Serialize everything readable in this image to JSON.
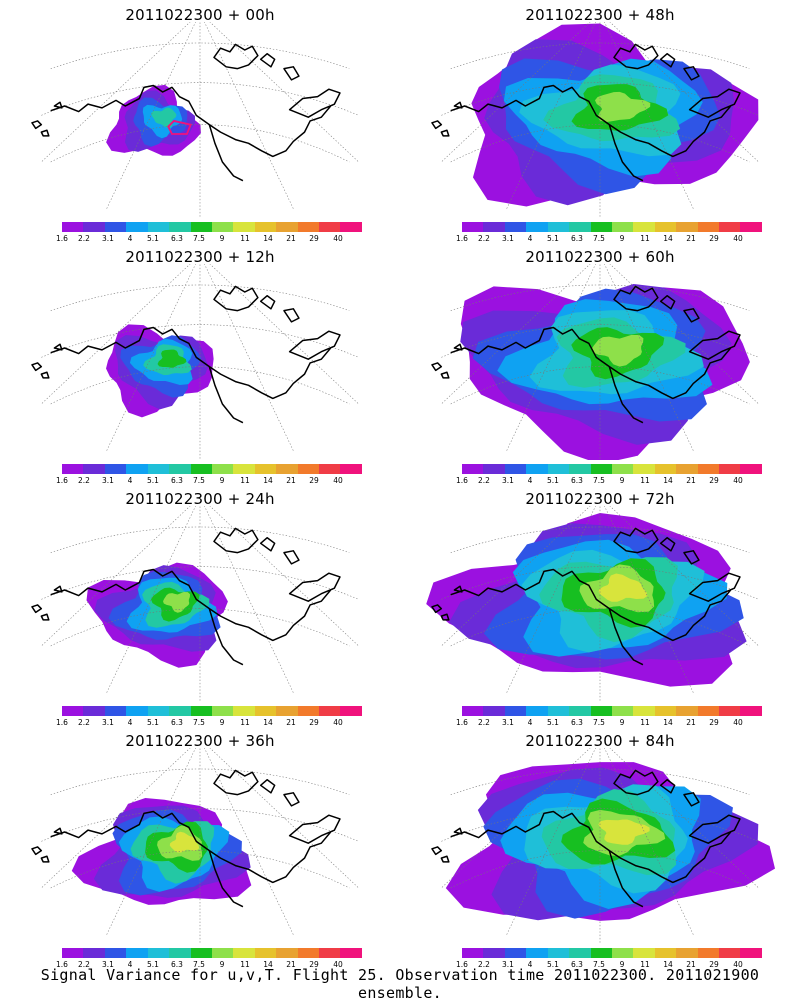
{
  "caption": "Signal Variance for u,v,T. Flight 25. Observation time 2011022300. 2011021900 ensemble.",
  "colorbar": {
    "colors": [
      "#9b11e0",
      "#6a2bd8",
      "#2f55e6",
      "#0fa2f2",
      "#1fbfd8",
      "#23c8a4",
      "#17bf21",
      "#8ee04a",
      "#d8e43c",
      "#e6c22c",
      "#e8a231",
      "#f27a2b",
      "#f03c46",
      "#f0127c"
    ],
    "labels": [
      "1.6",
      "2.2",
      "3.1",
      "4",
      "5.1",
      "6.3",
      "7.5",
      "9",
      "11",
      "14",
      "21",
      "29",
      "40"
    ]
  },
  "panels": [
    {
      "title": "2011022300 + 00h",
      "intensity": 0
    },
    {
      "title": "2011022300 + 48h",
      "intensity": 4
    },
    {
      "title": "2011022300 + 12h",
      "intensity": 1
    },
    {
      "title": "2011022300 + 60h",
      "intensity": 5
    },
    {
      "title": "2011022300 + 24h",
      "intensity": 2
    },
    {
      "title": "2011022300 + 72h",
      "intensity": 6
    },
    {
      "title": "2011022300 + 36h",
      "intensity": 3
    },
    {
      "title": "2011022300 + 84h",
      "intensity": 7
    }
  ]
}
